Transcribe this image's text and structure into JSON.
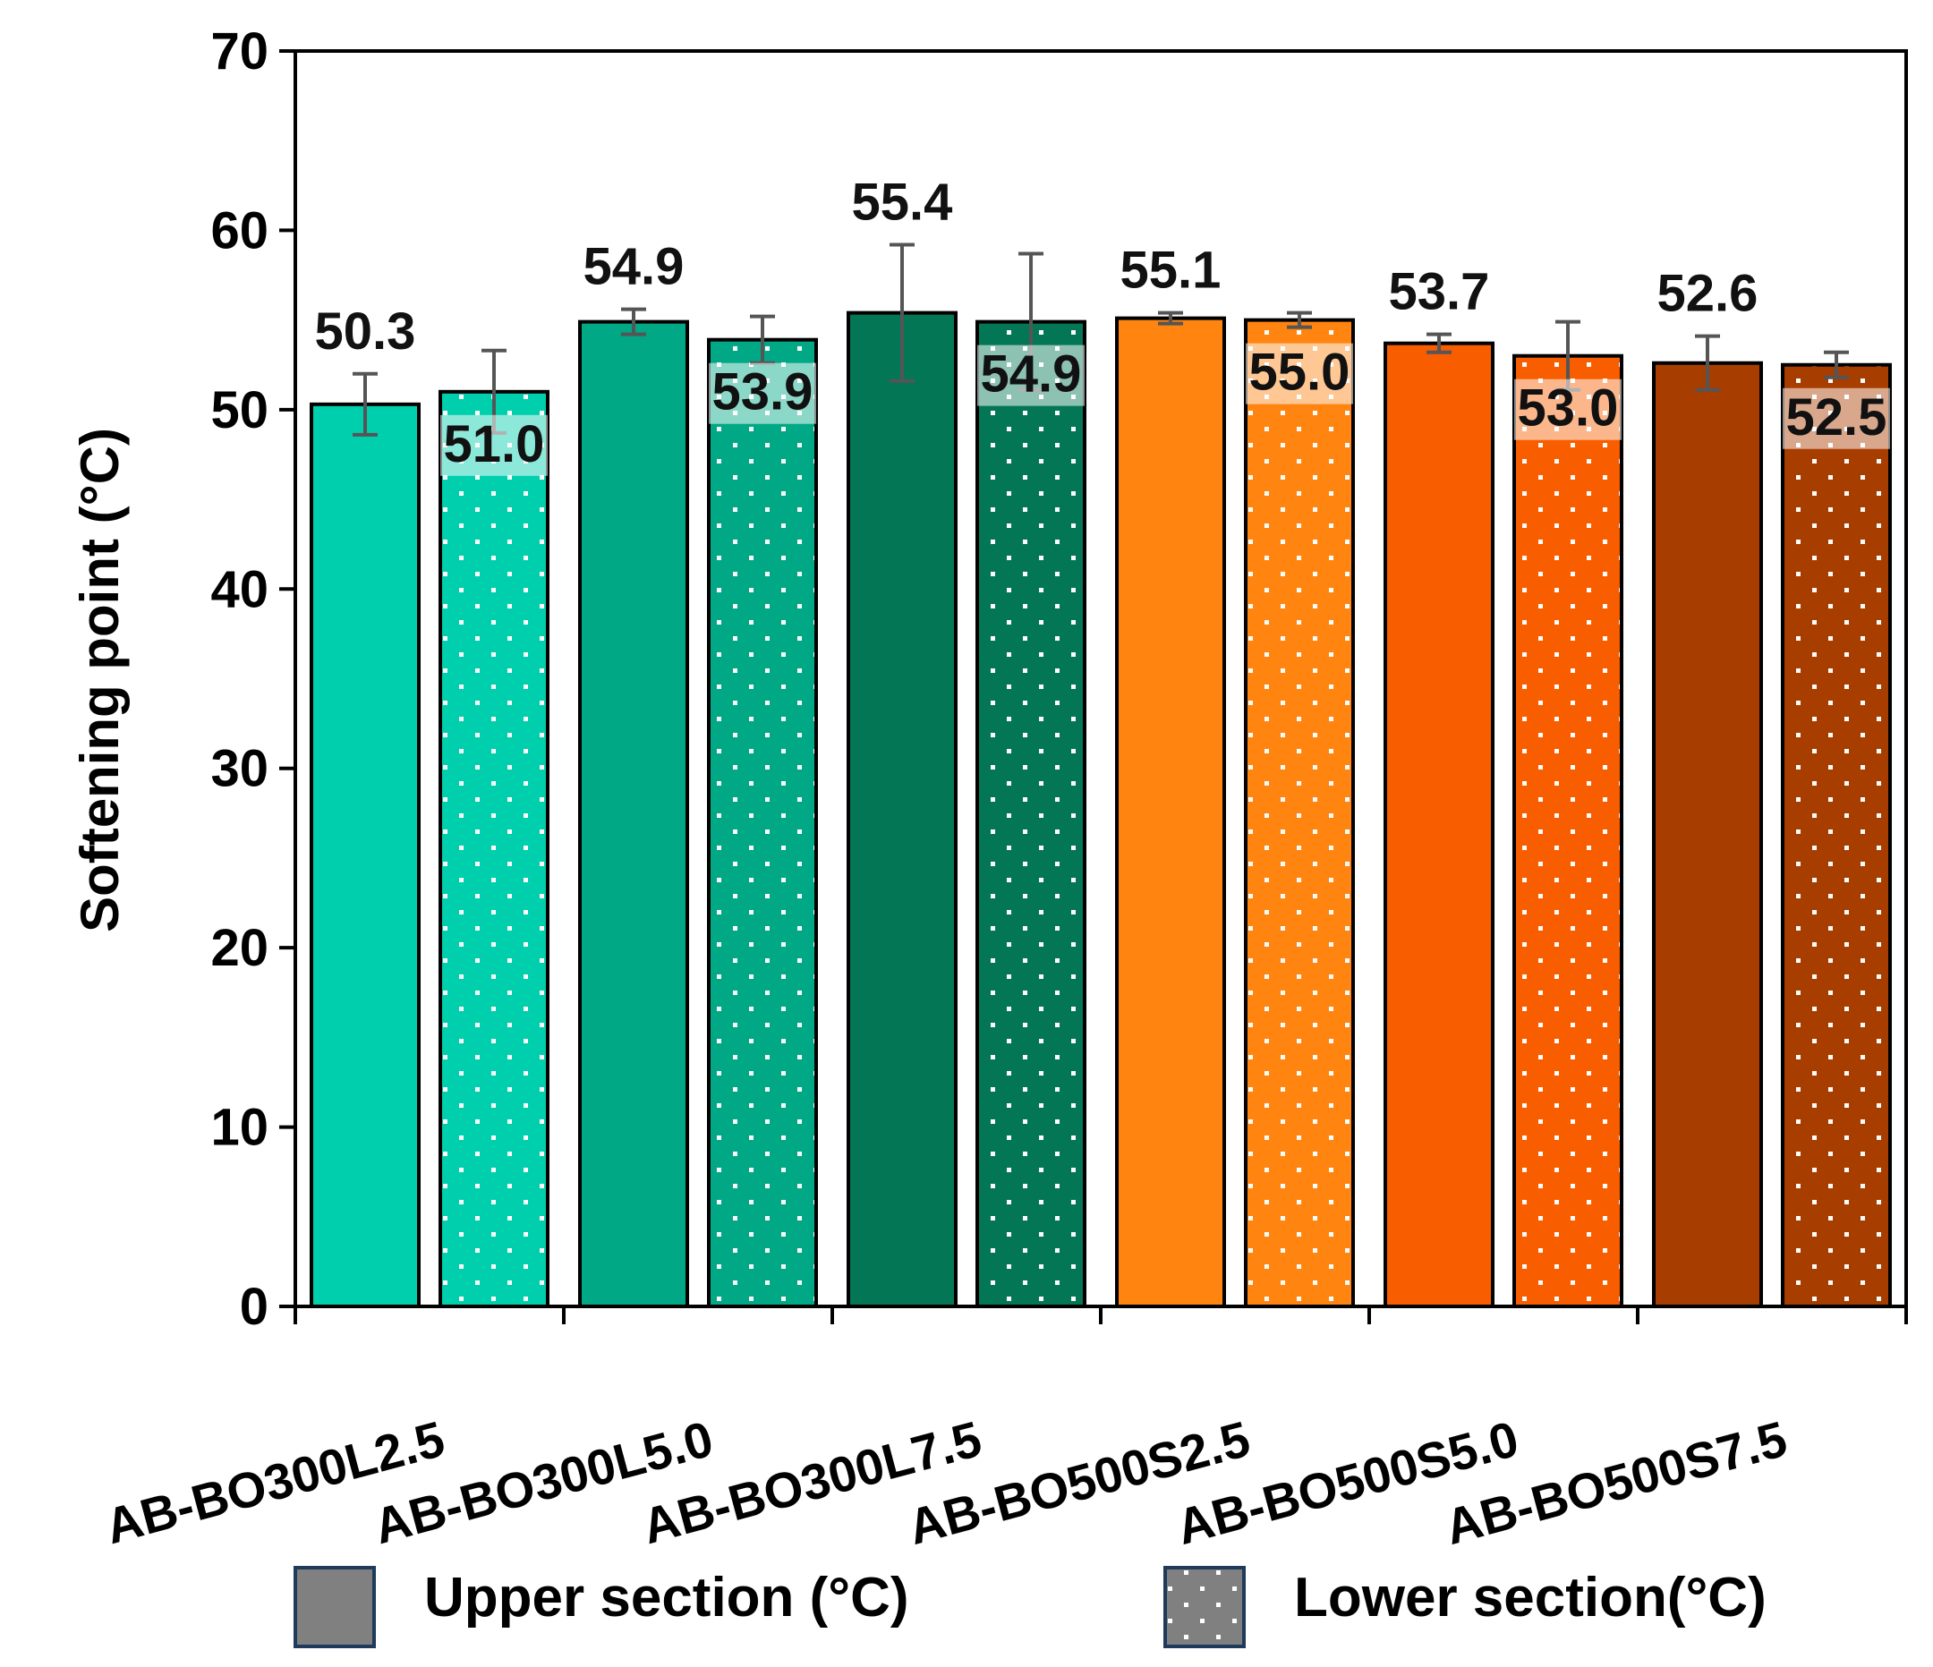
{
  "chart_data": {
    "type": "bar",
    "ylabel": "Softening point (°C)",
    "xlabel": "",
    "ylim": [
      0,
      70
    ],
    "yticks": [
      0,
      10,
      20,
      30,
      40,
      50,
      60,
      70
    ],
    "categories": [
      "AB-BO300L2.5",
      "AB-BO300L5.0",
      "AB-BO300L7.5",
      "AB-BO500S2.5",
      "AB-BO500S5.0",
      "AB-BO500S7.5"
    ],
    "series": [
      {
        "name": "Upper section (°C)",
        "pattern": "solid",
        "values": [
          50.3,
          54.9,
          55.4,
          55.1,
          53.7,
          52.6
        ],
        "labels": [
          "50.3",
          "54.9",
          "55.4",
          "55.1",
          "53.7",
          "52.6"
        ],
        "error_bars": [
          1.7,
          0.7,
          3.8,
          0.3,
          0.5,
          1.5
        ]
      },
      {
        "name": "Lower section(°C)",
        "pattern": "dotted",
        "values": [
          51.0,
          53.9,
          54.9,
          55.0,
          53.0,
          52.5
        ],
        "labels": [
          "51.0",
          "53.9",
          "54.9",
          "55.0",
          "53.0",
          "52.5"
        ],
        "error_bars": [
          2.3,
          1.3,
          3.8,
          0.4,
          1.9,
          0.7
        ]
      }
    ],
    "colors": [
      "#00cfae",
      "#00a886",
      "#037656",
      "#ff8410",
      "#f85d00",
      "#a83d00"
    ],
    "legend": {
      "position": "bottom",
      "items": [
        "Upper section (°C)",
        "Lower section(°C)"
      ],
      "swatch_color": "#808080",
      "swatch_border": "#1f3a5a"
    }
  }
}
